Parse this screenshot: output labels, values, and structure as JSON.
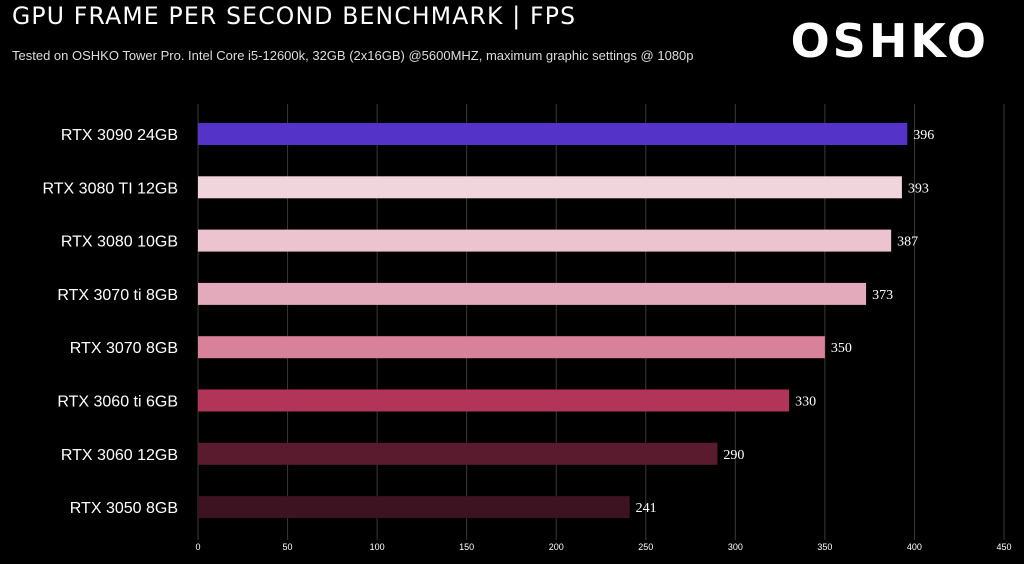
{
  "header": {
    "title": "GPU FRAME PER SECOND BENCHMARK | FPS",
    "subtitle": "Tested on OSHKO Tower Pro. Intel Core i5-12600k, 32GB (2x16GB) @5600MHZ, maximum graphic settings @ 1080p",
    "logo": "OSHKO"
  },
  "chart_data": {
    "type": "bar",
    "orientation": "horizontal",
    "title": "GPU FRAME PER SECOND BENCHMARK | FPS",
    "subtitle": "Tested on OSHKO Tower Pro. Intel Core i5-12600k, 32GB (2x16GB) @5600MHZ, maximum graphic settings @ 1080p",
    "categories": [
      "RTX 3090 24GB",
      "RTX 3080 TI 12GB",
      "RTX 3080 10GB",
      "RTX 3070 ti 8GB",
      "RTX 3070 8GB",
      "RTX 3060 ti 6GB",
      "RTX 3060 12GB",
      "RTX 3050 8GB"
    ],
    "values": [
      396,
      393,
      387,
      373,
      350,
      330,
      290,
      241
    ],
    "colors": [
      "#5433c9",
      "#f0d5dc",
      "#ecc4cf",
      "#e3aabb",
      "#d7819b",
      "#b23459",
      "#5a1b2f",
      "#3d1221"
    ],
    "xlim": [
      0,
      450
    ],
    "xticks": [
      0,
      50,
      100,
      150,
      200,
      250,
      300,
      350,
      400,
      450
    ],
    "xlabel": "",
    "ylabel": "",
    "grid": true,
    "legend": "none"
  }
}
